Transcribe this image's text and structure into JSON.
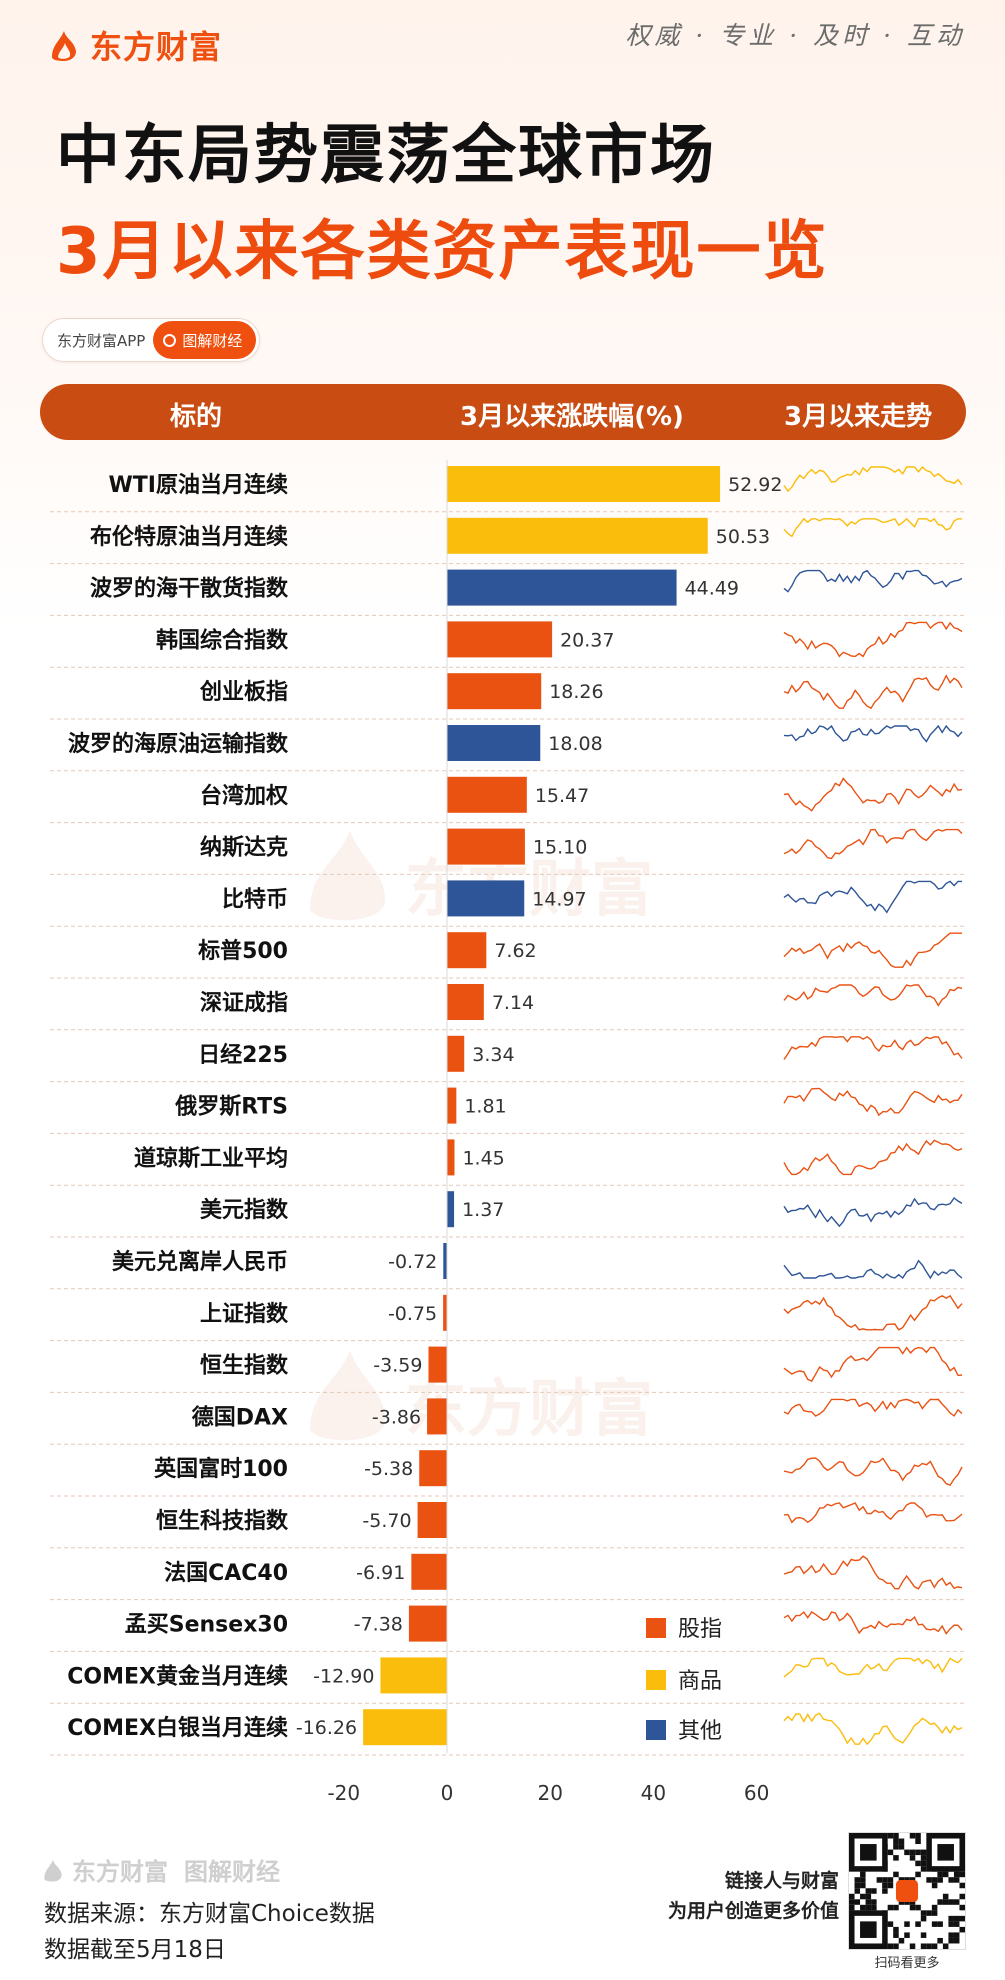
{
  "brand": {
    "name": "东方财富",
    "slogan": "权威 · 专业 · 及时 · 互动",
    "accent": "#f0500f"
  },
  "title": {
    "line1": "中东局势震荡全球市场",
    "line2": "3月以来各类资产表现一览"
  },
  "app": {
    "name": "东方财富APP",
    "tag": "图解财经"
  },
  "table_header": {
    "col1": "标的",
    "col2": "3月以来涨跌幅(%)",
    "col3": "3月以来走势"
  },
  "chart_data": {
    "type": "bar",
    "orientation": "horizontal",
    "xlim": [
      -20,
      60
    ],
    "xticks": [
      "-20",
      "0",
      "20",
      "40",
      "60"
    ],
    "categories": [
      "WTI原油当月连续",
      "布伦特原油当月连续",
      "波罗的海干散货指数",
      "韩国综合指数",
      "创业板指",
      "波罗的海原油运输指数",
      "台湾加权",
      "纳斯达克",
      "比特币",
      "标普500",
      "深证成指",
      "日经225",
      "俄罗斯RTS",
      "道琼斯工业平均",
      "美元指数",
      "美元兑离岸人民币",
      "上证指数",
      "恒生指数",
      "德国DAX",
      "英国富时100",
      "恒生科技指数",
      "法国CAC40",
      "孟买Sensex30",
      "COMEX黄金当月连续",
      "COMEX白银当月连续"
    ],
    "values": [
      52.92,
      50.53,
      44.49,
      20.37,
      18.26,
      18.08,
      15.47,
      15.1,
      14.97,
      7.62,
      7.14,
      3.34,
      1.81,
      1.45,
      1.37,
      -0.72,
      -0.75,
      -3.59,
      -3.86,
      -5.38,
      -5.7,
      -6.91,
      -7.38,
      -12.9,
      -16.26
    ],
    "value_labels": [
      "52.92",
      "50.53",
      "44.49",
      "20.37",
      "18.26",
      "18.08",
      "15.47",
      "15.10",
      "14.97",
      "7.62",
      "7.14",
      "3.34",
      "1.81",
      "1.45",
      "1.37",
      "-0.72",
      "-0.75",
      "-3.59",
      "-3.86",
      "-5.38",
      "-5.70",
      "-6.91",
      "-7.38",
      "-12.90",
      "-16.26"
    ],
    "groups": [
      "商品",
      "商品",
      "其他",
      "股指",
      "股指",
      "其他",
      "股指",
      "股指",
      "其他",
      "股指",
      "股指",
      "股指",
      "股指",
      "股指",
      "其他",
      "其他",
      "股指",
      "股指",
      "股指",
      "股指",
      "股指",
      "股指",
      "股指",
      "商品",
      "商品"
    ],
    "legend": [
      {
        "name": "股指",
        "color": "#ea5212"
      },
      {
        "name": "商品",
        "color": "#fbbd0c"
      },
      {
        "name": "其他",
        "color": "#2e5597"
      }
    ],
    "legend_position": "bottom-right",
    "sparkline_column": "3月以来走势"
  },
  "footer": {
    "logo": "东方财富",
    "logo_sub": "图解财经",
    "source": "数据来源：东方财富Choice数据",
    "cutoff": "数据截至5月18日",
    "promo_line1": "链接人与财富",
    "promo_line2": "为用户创造更多价值",
    "qr_caption": "扫码看更多"
  }
}
